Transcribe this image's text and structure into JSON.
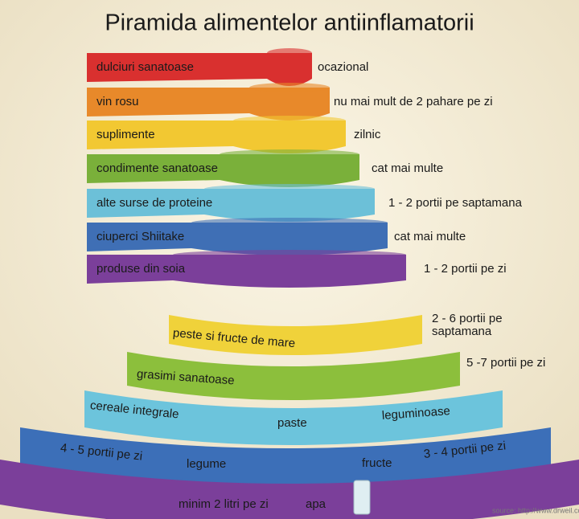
{
  "title": "Piramida alimentelor antiinflamatorii",
  "tiers": [
    {
      "label": "dulciuri sanatoase",
      "frequency": "ocazional"
    },
    {
      "label": "vin rosu",
      "frequency": "nu mai mult de 2 pahare pe zi"
    },
    {
      "label": "suplimente",
      "frequency": "zilnic"
    },
    {
      "label": "condimente sanatoase",
      "frequency": "cat mai multe"
    },
    {
      "label": "alte surse de proteine",
      "frequency": "1 - 2 portii pe saptamana"
    },
    {
      "label": "ciuperci Shiitake",
      "frequency": "cat mai multe"
    },
    {
      "label": "produse din soia",
      "frequency": "1 - 2 portii pe zi"
    }
  ],
  "lower_tiers": [
    {
      "texts": [
        "peste si fructe de mare",
        "2 - 6 portii pe",
        "saptamana"
      ]
    },
    {
      "texts": [
        "grasimi sanatoase",
        "5 -7 portii pe zi"
      ]
    },
    {
      "texts": [
        "cereale integrale",
        "paste",
        "leguminoase"
      ]
    },
    {
      "texts": [
        "4 - 5 portii pe zi",
        "legume",
        "fructe",
        "3 - 4 portii pe zi"
      ]
    },
    {
      "texts": [
        "minim 2 litri pe zi",
        "apa"
      ]
    }
  ],
  "source": "source: http://www.drweil.com"
}
